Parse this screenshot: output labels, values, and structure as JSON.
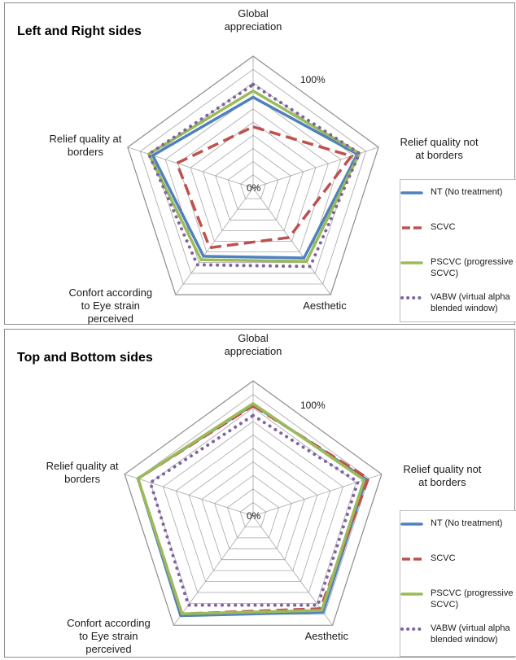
{
  "series_styles": [
    {
      "name": "NT (No treatment)",
      "color": "#4f81bd",
      "style": "solid"
    },
    {
      "name": "SCVC",
      "color": "#c0504d",
      "style": "dashed"
    },
    {
      "name": "PSCVC (progressive SCVC)",
      "color": "#9bbb59",
      "style": "solid"
    },
    {
      "name": "VABW (virtual alpha blended window)",
      "color": "#8064a2",
      "style": "dotted"
    }
  ],
  "chart_data": [
    {
      "type": "radar",
      "title": "Left and Right sides",
      "axes": [
        "Global appreciation",
        "Relief quality not at borders",
        "Aesthetic",
        "Confort according to Eye strain perceived",
        "Relief quality at borders"
      ],
      "axis_label_lines": [
        [
          "Global",
          "appreciation"
        ],
        [
          "Relief quality not",
          "at borders"
        ],
        [
          "Aesthetic"
        ],
        [
          "Confort according",
          "to Eye strain",
          "perceived"
        ],
        [
          "Relief quality at",
          "borders"
        ]
      ],
      "scale": {
        "min": 0,
        "max": 1.25,
        "step": 0.125
      },
      "tick_labels": [
        "0%",
        "100%"
      ],
      "grid": true,
      "legend_position": "right",
      "series": [
        {
          "name": "NT (No treatment)",
          "values": [
            0.86,
            1.04,
            0.82,
            0.8,
            1.0
          ]
        },
        {
          "name": "SCVC",
          "values": [
            0.58,
            0.98,
            0.58,
            0.7,
            0.76
          ]
        },
        {
          "name": "PSCVC (progressive SCVC)",
          "values": [
            0.92,
            1.06,
            0.86,
            0.84,
            1.04
          ]
        },
        {
          "name": "VABW (virtual alpha blended window)",
          "values": [
            0.98,
            1.06,
            0.92,
            0.9,
            1.04
          ]
        }
      ]
    },
    {
      "type": "radar",
      "title": "Top and Bottom sides",
      "axes": [
        "Global appreciation",
        "Relief quality not at borders",
        "Aesthetic",
        "Confort according to Eye strain perceived",
        "Relief quality at borders"
      ],
      "axis_label_lines": [
        [
          "Global",
          "appreciation"
        ],
        [
          "Relief quality not",
          "at borders"
        ],
        [
          "Aesthetic"
        ],
        [
          "Confort according",
          "to Eye strain",
          "perceived"
        ],
        [
          "Relief quality at",
          "borders"
        ]
      ],
      "scale": {
        "min": 0,
        "max": 1.25,
        "step": 0.125
      },
      "tick_labels": [
        "0%",
        "100%"
      ],
      "grid": true,
      "legend_position": "right",
      "series": [
        {
          "name": "NT (No treatment)",
          "values": [
            1.03,
            1.1,
            1.1,
            1.14,
            1.12
          ]
        },
        {
          "name": "SCVC",
          "values": [
            1.02,
            1.12,
            1.06,
            1.12,
            1.12
          ]
        },
        {
          "name": "PSCVC (progressive SCVC)",
          "values": [
            1.04,
            1.08,
            1.08,
            1.12,
            1.12
          ]
        },
        {
          "name": "VABW (virtual alpha blended window)",
          "values": [
            0.93,
            1.02,
            1.02,
            1.02,
            1.0
          ]
        }
      ]
    }
  ]
}
